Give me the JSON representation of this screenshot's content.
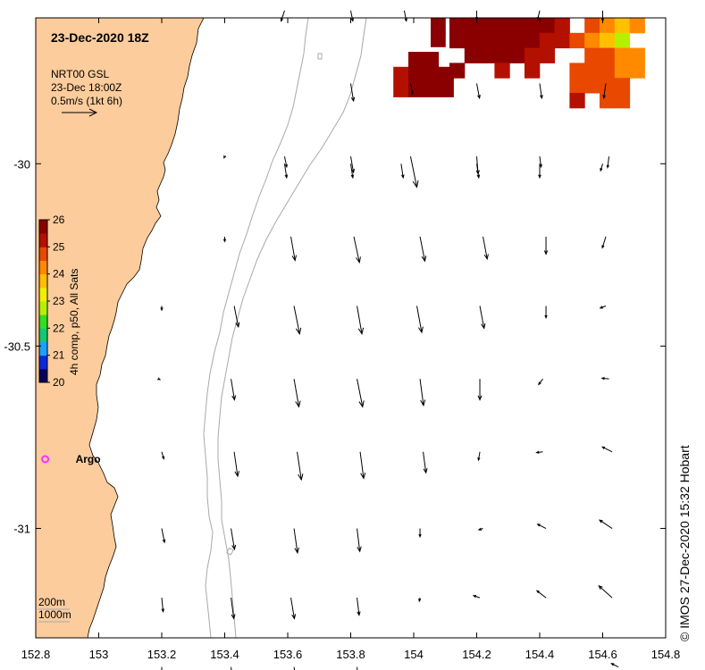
{
  "title": "23-Dec-2020 18Z",
  "product": {
    "line1": "NRT00 GSL",
    "line2": "23-Dec 18:00Z",
    "line3": "0.5m/s (1kt 6h)"
  },
  "colorbar": {
    "label": "4h comp, p50, All Sats",
    "min": 20,
    "max": 26,
    "ticks": [
      "26",
      "25",
      "24",
      "23",
      "22",
      "21",
      "20"
    ],
    "colors": [
      "#08005a",
      "#0a2ad8",
      "#1aa0ff",
      "#10c878",
      "#30e020",
      "#b4f000",
      "#f2f000",
      "#ffc000",
      "#ff8a00",
      "#e84800",
      "#b41000",
      "#8a0000"
    ]
  },
  "argo": {
    "label": "Argo",
    "lon": 152.83,
    "lat": -30.81,
    "color": "#ff30ff"
  },
  "depth_legend": {
    "line1": "200m",
    "line2": "1000m"
  },
  "credit": "© IMOS 27-Dec-2020 15:32 Hobart",
  "colors": {
    "land": "#fccc9c",
    "isobath": "#a8a8a8",
    "arrow": "#000000"
  },
  "axes": {
    "lon_min": 152.8,
    "lon_max": 154.8,
    "lat_min": -31.3,
    "lat_max": -29.6,
    "x_ticks": [
      "152.8",
      "153",
      "153.2",
      "153.4",
      "153.6",
      "153.8",
      "154",
      "154.2",
      "154.4",
      "154.6",
      "154.8"
    ],
    "y_ticks": [
      "-30",
      "-30.5",
      "-31"
    ]
  },
  "currents": [
    {
      "lon": 153.59,
      "lat": -29.58,
      "u": -0.05,
      "v": -0.15
    },
    {
      "lon": 153.8,
      "lat": -29.58,
      "u": 0.03,
      "v": -0.15
    },
    {
      "lon": 153.97,
      "lat": -29.58,
      "u": 0.03,
      "v": -0.15
    },
    {
      "lon": 154.2,
      "lat": -29.58,
      "u": 0.0,
      "v": -0.13
    },
    {
      "lon": 154.4,
      "lat": -29.58,
      "u": -0.03,
      "v": -0.13
    },
    {
      "lon": 154.6,
      "lat": -29.58,
      "u": 0.0,
      "v": -0.15
    },
    {
      "lon": 153.8,
      "lat": -29.78,
      "u": 0.04,
      "v": -0.25
    },
    {
      "lon": 153.99,
      "lat": -29.78,
      "u": 0.03,
      "v": -0.15
    },
    {
      "lon": 154.2,
      "lat": -29.78,
      "u": 0.04,
      "v": -0.21
    },
    {
      "lon": 154.4,
      "lat": -29.78,
      "u": 0.03,
      "v": -0.21
    },
    {
      "lon": 154.61,
      "lat": -29.78,
      "u": -0.03,
      "v": -0.21
    },
    {
      "lon": 153.4,
      "lat": -29.98,
      "u": -0.01,
      "v": -0.02
    },
    {
      "lon": 153.59,
      "lat": -29.98,
      "u": 0.03,
      "v": -0.15
    },
    {
      "lon": 153.8,
      "lat": -29.98,
      "u": 0.04,
      "v": -0.23
    },
    {
      "lon": 153.99,
      "lat": -29.98,
      "u": 0.09,
      "v": -0.44
    },
    {
      "lon": 154.2,
      "lat": -29.98,
      "u": 0.02,
      "v": -0.25
    },
    {
      "lon": 154.4,
      "lat": -29.98,
      "u": 0.02,
      "v": -0.15
    },
    {
      "lon": 154.62,
      "lat": -29.98,
      "u": -0.02,
      "v": -0.16
    },
    {
      "lon": 153.59,
      "lat": -30.0,
      "u": 0.03,
      "v": -0.2
    },
    {
      "lon": 153.8,
      "lat": -30.0,
      "u": 0.03,
      "v": -0.2
    },
    {
      "lon": 153.96,
      "lat": -30.0,
      "u": 0.03,
      "v": -0.2
    },
    {
      "lon": 154.2,
      "lat": -30.0,
      "u": 0.03,
      "v": -0.2
    },
    {
      "lon": 154.4,
      "lat": -30.0,
      "u": 0.0,
      "v": -0.2
    },
    {
      "lon": 154.6,
      "lat": -30.0,
      "u": -0.03,
      "v": -0.1
    },
    {
      "lon": 153.4,
      "lat": -30.2,
      "u": 0.0,
      "v": -0.07
    },
    {
      "lon": 153.61,
      "lat": -30.2,
      "u": 0.06,
      "v": -0.34
    },
    {
      "lon": 153.81,
      "lat": -30.2,
      "u": 0.08,
      "v": -0.37
    },
    {
      "lon": 154.02,
      "lat": -30.2,
      "u": 0.07,
      "v": -0.35
    },
    {
      "lon": 154.22,
      "lat": -30.2,
      "u": 0.06,
      "v": -0.32
    },
    {
      "lon": 154.42,
      "lat": -30.2,
      "u": 0.0,
      "v": -0.25
    },
    {
      "lon": 154.61,
      "lat": -30.2,
      "u": -0.05,
      "v": -0.16
    },
    {
      "lon": 153.2,
      "lat": -30.39,
      "u": 0.0,
      "v": -0.06
    },
    {
      "lon": 153.43,
      "lat": -30.39,
      "u": 0.06,
      "v": -0.3
    },
    {
      "lon": 153.62,
      "lat": -30.39,
      "u": 0.08,
      "v": -0.4
    },
    {
      "lon": 153.82,
      "lat": -30.39,
      "u": 0.07,
      "v": -0.4
    },
    {
      "lon": 154.01,
      "lat": -30.39,
      "u": 0.07,
      "v": -0.38
    },
    {
      "lon": 154.21,
      "lat": -30.39,
      "u": 0.06,
      "v": -0.32
    },
    {
      "lon": 154.42,
      "lat": -30.39,
      "u": 0.0,
      "v": -0.17
    },
    {
      "lon": 154.61,
      "lat": -30.39,
      "u": -0.08,
      "v": -0.03
    },
    {
      "lon": 153.19,
      "lat": -30.59,
      "u": 0.02,
      "v": -0.01
    },
    {
      "lon": 153.42,
      "lat": -30.59,
      "u": 0.05,
      "v": -0.3
    },
    {
      "lon": 153.62,
      "lat": -30.59,
      "u": 0.07,
      "v": -0.4
    },
    {
      "lon": 153.82,
      "lat": -30.59,
      "u": 0.08,
      "v": -0.4
    },
    {
      "lon": 154.02,
      "lat": -30.59,
      "u": 0.05,
      "v": -0.38
    },
    {
      "lon": 154.21,
      "lat": -30.59,
      "u": 0.0,
      "v": -0.3
    },
    {
      "lon": 154.41,
      "lat": -30.59,
      "u": -0.06,
      "v": -0.08
    },
    {
      "lon": 154.62,
      "lat": -30.59,
      "u": -0.1,
      "v": 0.01
    },
    {
      "lon": 153.2,
      "lat": -30.79,
      "u": 0.03,
      "v": -0.1
    },
    {
      "lon": 153.43,
      "lat": -30.79,
      "u": 0.05,
      "v": -0.35
    },
    {
      "lon": 153.63,
      "lat": -30.79,
      "u": 0.06,
      "v": -0.4
    },
    {
      "lon": 153.83,
      "lat": -30.79,
      "u": 0.05,
      "v": -0.38
    },
    {
      "lon": 154.03,
      "lat": -30.79,
      "u": 0.04,
      "v": -0.3
    },
    {
      "lon": 154.21,
      "lat": -30.79,
      "u": -0.02,
      "v": -0.12
    },
    {
      "lon": 154.41,
      "lat": -30.79,
      "u": -0.09,
      "v": -0.01
    },
    {
      "lon": 154.63,
      "lat": -30.79,
      "u": -0.14,
      "v": 0.07
    },
    {
      "lon": 153.2,
      "lat": -31.0,
      "u": 0.04,
      "v": -0.2
    },
    {
      "lon": 153.42,
      "lat": -31.0,
      "u": 0.05,
      "v": -0.3
    },
    {
      "lon": 153.62,
      "lat": -31.0,
      "u": 0.05,
      "v": -0.35
    },
    {
      "lon": 153.82,
      "lat": -31.0,
      "u": 0.04,
      "v": -0.33
    },
    {
      "lon": 154.02,
      "lat": -31.0,
      "u": 0.0,
      "v": -0.12
    },
    {
      "lon": 154.22,
      "lat": -31.0,
      "u": -0.06,
      "v": -0.02
    },
    {
      "lon": 154.42,
      "lat": -31.0,
      "u": -0.12,
      "v": 0.06
    },
    {
      "lon": 154.63,
      "lat": -31.0,
      "u": -0.18,
      "v": 0.12
    },
    {
      "lon": 153.2,
      "lat": -31.19,
      "u": 0.02,
      "v": -0.2
    },
    {
      "lon": 153.42,
      "lat": -31.19,
      "u": 0.04,
      "v": -0.3
    },
    {
      "lon": 153.61,
      "lat": -31.19,
      "u": 0.05,
      "v": -0.3
    },
    {
      "lon": 153.82,
      "lat": -31.19,
      "u": 0.03,
      "v": -0.25
    },
    {
      "lon": 154.02,
      "lat": -31.19,
      "u": -0.01,
      "v": -0.05
    },
    {
      "lon": 154.21,
      "lat": -31.19,
      "u": -0.09,
      "v": 0.03
    },
    {
      "lon": 154.42,
      "lat": -31.19,
      "u": -0.13,
      "v": 0.1
    },
    {
      "lon": 154.63,
      "lat": -31.19,
      "u": -0.19,
      "v": 0.17
    },
    {
      "lon": 153.2,
      "lat": -31.38,
      "u": 0.0,
      "v": -0.1
    },
    {
      "lon": 153.42,
      "lat": -31.38,
      "u": 0.04,
      "v": -0.3
    },
    {
      "lon": 153.62,
      "lat": -31.38,
      "u": 0.04,
      "v": -0.3
    },
    {
      "lon": 153.82,
      "lat": -31.38,
      "u": 0.01,
      "v": -0.1
    },
    {
      "lon": 154.65,
      "lat": -31.38,
      "u": -0.1,
      "v": 0.05
    }
  ],
  "sst_cells": [
    {
      "col": 0,
      "row": 0,
      "t": 25.9
    },
    {
      "col": 1,
      "row": 0,
      "t": 25.8
    },
    {
      "col": 2,
      "row": 0,
      "t": 25.7
    },
    {
      "col": 3,
      "row": 0,
      "t": 25.9
    },
    {
      "col": 4,
      "row": 0,
      "t": 25.6
    },
    {
      "col": 5,
      "row": 0,
      "t": 25.8
    },
    {
      "col": 6,
      "row": 0,
      "t": 25.7
    },
    {
      "col": 7,
      "row": 0,
      "t": 25.4
    },
    {
      "col": 9,
      "row": 0,
      "t": 24.8
    },
    {
      "col": 10,
      "row": 0,
      "t": 24.3
    },
    {
      "col": 11,
      "row": 0,
      "t": 23.6
    },
    {
      "col": 12,
      "row": 0,
      "t": 24.2
    },
    {
      "col": 0,
      "row": 1,
      "t": 25.8
    },
    {
      "col": 1,
      "row": 1,
      "t": 25.9
    },
    {
      "col": 2,
      "row": 1,
      "t": 25.7
    },
    {
      "col": 3,
      "row": 1,
      "t": 25.6
    },
    {
      "col": 4,
      "row": 1,
      "t": 25.8
    },
    {
      "col": 5,
      "row": 1,
      "t": 25.7
    },
    {
      "col": 6,
      "row": 1,
      "t": 25.2
    },
    {
      "col": 7,
      "row": 1,
      "t": 25.0
    },
    {
      "col": 8,
      "row": 1,
      "t": 24.6
    },
    {
      "col": 9,
      "row": 1,
      "t": 24.4
    },
    {
      "col": 10,
      "row": 1,
      "t": 23.9
    },
    {
      "col": 11,
      "row": 1,
      "t": 22.6
    },
    {
      "col": 1,
      "row": 2,
      "t": 25.7
    },
    {
      "col": 2,
      "row": 2,
      "t": 25.8
    },
    {
      "col": 3,
      "row": 2,
      "t": 25.6
    },
    {
      "col": 4,
      "row": 2,
      "t": 25.7
    },
    {
      "col": 5,
      "row": 2,
      "t": 25.3
    },
    {
      "col": 6,
      "row": 2,
      "t": 25.1
    },
    {
      "col": 9,
      "row": 2,
      "t": 24.7
    },
    {
      "col": 10,
      "row": 2,
      "t": 24.5
    },
    {
      "col": 11,
      "row": 2,
      "t": 24.2
    },
    {
      "col": 12,
      "row": 2,
      "t": 24.0
    },
    {
      "col": 0,
      "row": 3,
      "t": 25.6
    },
    {
      "col": 3,
      "row": 3,
      "t": 25.4
    },
    {
      "col": 5,
      "row": 3,
      "t": 25.0
    },
    {
      "col": 8,
      "row": 3,
      "t": 24.8
    },
    {
      "col": 9,
      "row": 3,
      "t": 24.6
    },
    {
      "col": 10,
      "row": 3,
      "t": 24.7
    },
    {
      "col": 11,
      "row": 3,
      "t": 24.3
    },
    {
      "col": 12,
      "row": 3,
      "t": 24.1
    },
    {
      "col": 8,
      "row": 4,
      "t": 24.9
    },
    {
      "col": 9,
      "row": 4,
      "t": 24.7
    },
    {
      "col": 10,
      "row": 4,
      "t": 24.8
    },
    {
      "col": 11,
      "row": 4,
      "t": 24.6
    },
    {
      "col": 8,
      "row": 5,
      "t": 25.0
    },
    {
      "col": 10,
      "row": 5,
      "t": 24.9
    },
    {
      "col": 11,
      "row": 5,
      "t": 24.7
    }
  ],
  "sst_patch_left": [
    {
      "col": 0,
      "row": 0,
      "t": 25.6
    },
    {
      "col": 1,
      "row": 0,
      "t": 25.8
    },
    {
      "col": -1,
      "row": 1,
      "t": 25.4
    },
    {
      "col": 0,
      "row": 1,
      "t": 25.7
    },
    {
      "col": 1,
      "row": 1,
      "t": 25.9
    },
    {
      "col": 2,
      "row": 1,
      "t": 25.5
    },
    {
      "col": -1,
      "row": 2,
      "t": 25.3
    },
    {
      "col": 0,
      "row": 2,
      "t": 25.5
    },
    {
      "col": 1,
      "row": 2,
      "t": 25.8
    },
    {
      "col": 2,
      "row": 2,
      "t": 25.6
    }
  ]
}
